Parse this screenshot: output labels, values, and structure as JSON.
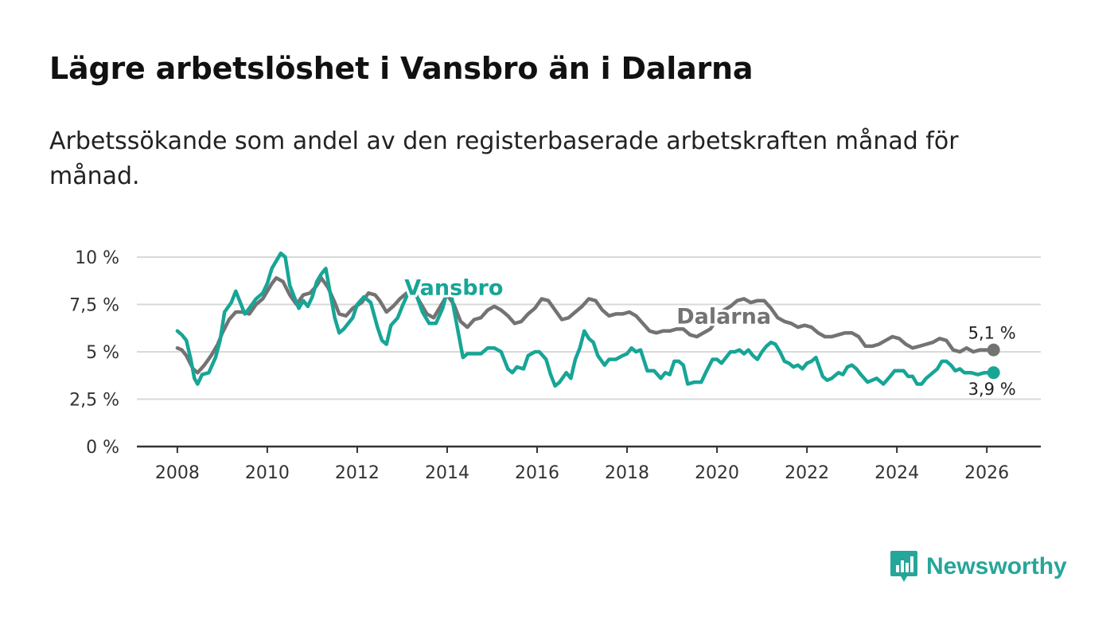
{
  "header": {
    "title": "Lägre arbetslöshet i Vansbro än i Dalarna",
    "subtitle": "Arbetssökande som andel av den registerbaserade arbetskraften månad för månad."
  },
  "brand": {
    "name": "Newsworthy",
    "color": "#26a69a"
  },
  "chart_data": {
    "type": "line",
    "title": "Lägre arbetslöshet i Vansbro än i Dalarna",
    "subtitle": "Arbetssökande som andel av den registerbaserade arbetskraften månad för månad.",
    "xlabel": "",
    "ylabel": "",
    "xlim": [
      2007.1,
      2027.2
    ],
    "ylim": [
      0,
      10
    ],
    "yticks": [
      {
        "value": 0,
        "label": "0 %"
      },
      {
        "value": 2.5,
        "label": "2,5 %"
      },
      {
        "value": 5,
        "label": "5 %"
      },
      {
        "value": 7.5,
        "label": "7,5 %"
      },
      {
        "value": 10,
        "label": "10 %"
      }
    ],
    "xticks": [
      {
        "value": 2008,
        "label": "2008"
      },
      {
        "value": 2010,
        "label": "2010"
      },
      {
        "value": 2012,
        "label": "2012"
      },
      {
        "value": 2014,
        "label": "2014"
      },
      {
        "value": 2016,
        "label": "2016"
      },
      {
        "value": 2018,
        "label": "2018"
      },
      {
        "value": 2020,
        "label": "2020"
      },
      {
        "value": 2022,
        "label": "2022"
      },
      {
        "value": 2024,
        "label": "2024"
      },
      {
        "value": 2026,
        "label": "2026"
      }
    ],
    "grid": true,
    "series": [
      {
        "name": "Dalarna",
        "color": "#737373",
        "label_position": [
          2019.1,
          6.5
        ],
        "end_label": "5,1 %",
        "points": [
          [
            2008.0,
            5.2
          ],
          [
            2008.1,
            5.1
          ],
          [
            2008.2,
            4.8
          ],
          [
            2008.35,
            4.1
          ],
          [
            2008.45,
            3.9
          ],
          [
            2008.6,
            4.3
          ],
          [
            2008.75,
            4.8
          ],
          [
            2008.9,
            5.4
          ],
          [
            2009.0,
            6.0
          ],
          [
            2009.15,
            6.7
          ],
          [
            2009.3,
            7.1
          ],
          [
            2009.45,
            7.1
          ],
          [
            2009.6,
            7.0
          ],
          [
            2009.75,
            7.5
          ],
          [
            2009.9,
            7.8
          ],
          [
            2010.0,
            8.2
          ],
          [
            2010.1,
            8.6
          ],
          [
            2010.2,
            8.9
          ],
          [
            2010.35,
            8.7
          ],
          [
            2010.5,
            8.0
          ],
          [
            2010.65,
            7.5
          ],
          [
            2010.8,
            8.0
          ],
          [
            2010.95,
            8.1
          ],
          [
            2011.1,
            8.5
          ],
          [
            2011.2,
            8.9
          ],
          [
            2011.35,
            8.4
          ],
          [
            2011.5,
            7.6
          ],
          [
            2011.6,
            7.0
          ],
          [
            2011.75,
            6.9
          ],
          [
            2011.9,
            7.3
          ],
          [
            2012.1,
            7.6
          ],
          [
            2012.25,
            8.1
          ],
          [
            2012.4,
            8.0
          ],
          [
            2012.5,
            7.7
          ],
          [
            2012.65,
            7.1
          ],
          [
            2012.8,
            7.4
          ],
          [
            2012.95,
            7.8
          ],
          [
            2013.1,
            8.1
          ],
          [
            2013.25,
            8.2
          ],
          [
            2013.4,
            7.6
          ],
          [
            2013.55,
            7.0
          ],
          [
            2013.7,
            6.8
          ],
          [
            2013.85,
            7.4
          ],
          [
            2014.0,
            8.0
          ],
          [
            2014.15,
            7.5
          ],
          [
            2014.3,
            6.6
          ],
          [
            2014.45,
            6.3
          ],
          [
            2014.6,
            6.7
          ],
          [
            2014.75,
            6.8
          ],
          [
            2014.9,
            7.2
          ],
          [
            2015.05,
            7.4
          ],
          [
            2015.2,
            7.2
          ],
          [
            2015.35,
            6.9
          ],
          [
            2015.5,
            6.5
          ],
          [
            2015.65,
            6.6
          ],
          [
            2015.8,
            7.0
          ],
          [
            2015.95,
            7.3
          ],
          [
            2016.1,
            7.8
          ],
          [
            2016.25,
            7.7
          ],
          [
            2016.4,
            7.2
          ],
          [
            2016.55,
            6.7
          ],
          [
            2016.7,
            6.8
          ],
          [
            2016.85,
            7.1
          ],
          [
            2017.0,
            7.4
          ],
          [
            2017.15,
            7.8
          ],
          [
            2017.3,
            7.7
          ],
          [
            2017.45,
            7.2
          ],
          [
            2017.6,
            6.9
          ],
          [
            2017.75,
            7.0
          ],
          [
            2017.9,
            7.0
          ],
          [
            2018.05,
            7.1
          ],
          [
            2018.2,
            6.9
          ],
          [
            2018.35,
            6.5
          ],
          [
            2018.5,
            6.1
          ],
          [
            2018.65,
            6.0
          ],
          [
            2018.8,
            6.1
          ],
          [
            2018.95,
            6.1
          ],
          [
            2019.1,
            6.2
          ],
          [
            2019.25,
            6.2
          ],
          [
            2019.4,
            5.9
          ],
          [
            2019.55,
            5.8
          ],
          [
            2019.7,
            6.0
          ],
          [
            2019.85,
            6.2
          ],
          [
            2020.0,
            6.7
          ],
          [
            2020.15,
            7.2
          ],
          [
            2020.3,
            7.4
          ],
          [
            2020.45,
            7.7
          ],
          [
            2020.6,
            7.8
          ],
          [
            2020.75,
            7.6
          ],
          [
            2020.9,
            7.7
          ],
          [
            2021.05,
            7.7
          ],
          [
            2021.2,
            7.3
          ],
          [
            2021.35,
            6.8
          ],
          [
            2021.5,
            6.6
          ],
          [
            2021.65,
            6.5
          ],
          [
            2021.8,
            6.3
          ],
          [
            2021.95,
            6.4
          ],
          [
            2022.1,
            6.3
          ],
          [
            2022.25,
            6.0
          ],
          [
            2022.4,
            5.8
          ],
          [
            2022.55,
            5.8
          ],
          [
            2022.7,
            5.9
          ],
          [
            2022.85,
            6.0
          ],
          [
            2023.0,
            6.0
          ],
          [
            2023.15,
            5.8
          ],
          [
            2023.3,
            5.3
          ],
          [
            2023.45,
            5.3
          ],
          [
            2023.6,
            5.4
          ],
          [
            2023.75,
            5.6
          ],
          [
            2023.9,
            5.8
          ],
          [
            2024.05,
            5.7
          ],
          [
            2024.2,
            5.4
          ],
          [
            2024.35,
            5.2
          ],
          [
            2024.5,
            5.3
          ],
          [
            2024.65,
            5.4
          ],
          [
            2024.8,
            5.5
          ],
          [
            2024.95,
            5.7
          ],
          [
            2025.1,
            5.6
          ],
          [
            2025.25,
            5.1
          ],
          [
            2025.4,
            5.0
          ],
          [
            2025.55,
            5.2
          ],
          [
            2025.7,
            5.0
          ],
          [
            2025.85,
            5.1
          ],
          [
            2026.0,
            5.1
          ],
          [
            2026.15,
            5.1
          ]
        ]
      },
      {
        "name": "Vansbro",
        "color": "#17a596",
        "label_position": [
          2013.05,
          8.0
        ],
        "end_label": "3,9 %",
        "points": [
          [
            2008.0,
            6.1
          ],
          [
            2008.1,
            5.9
          ],
          [
            2008.2,
            5.6
          ],
          [
            2008.3,
            4.6
          ],
          [
            2008.38,
            3.6
          ],
          [
            2008.45,
            3.3
          ],
          [
            2008.55,
            3.8
          ],
          [
            2008.7,
            3.9
          ],
          [
            2008.85,
            4.7
          ],
          [
            2008.95,
            5.6
          ],
          [
            2009.05,
            7.1
          ],
          [
            2009.2,
            7.6
          ],
          [
            2009.3,
            8.2
          ],
          [
            2009.4,
            7.6
          ],
          [
            2009.5,
            7.0
          ],
          [
            2009.6,
            7.3
          ],
          [
            2009.75,
            7.8
          ],
          [
            2009.9,
            8.1
          ],
          [
            2010.0,
            8.6
          ],
          [
            2010.1,
            9.4
          ],
          [
            2010.2,
            9.8
          ],
          [
            2010.3,
            10.2
          ],
          [
            2010.4,
            10.0
          ],
          [
            2010.5,
            8.5
          ],
          [
            2010.6,
            7.9
          ],
          [
            2010.7,
            7.3
          ],
          [
            2010.8,
            7.7
          ],
          [
            2010.9,
            7.4
          ],
          [
            2011.0,
            7.9
          ],
          [
            2011.1,
            8.7
          ],
          [
            2011.2,
            9.1
          ],
          [
            2011.3,
            9.4
          ],
          [
            2011.4,
            8.1
          ],
          [
            2011.5,
            6.8
          ],
          [
            2011.6,
            6.0
          ],
          [
            2011.7,
            6.2
          ],
          [
            2011.8,
            6.5
          ],
          [
            2011.9,
            6.8
          ],
          [
            2012.0,
            7.5
          ],
          [
            2012.15,
            7.9
          ],
          [
            2012.3,
            7.6
          ],
          [
            2012.45,
            6.3
          ],
          [
            2012.55,
            5.6
          ],
          [
            2012.65,
            5.4
          ],
          [
            2012.75,
            6.4
          ],
          [
            2012.9,
            6.8
          ],
          [
            2013.0,
            7.4
          ],
          [
            2013.15,
            8.2
          ],
          [
            2013.3,
            8.1
          ],
          [
            2013.45,
            7.1
          ],
          [
            2013.6,
            6.5
          ],
          [
            2013.75,
            6.5
          ],
          [
            2013.9,
            7.3
          ],
          [
            2014.0,
            8.2
          ],
          [
            2014.1,
            7.9
          ],
          [
            2014.2,
            6.6
          ],
          [
            2014.35,
            4.7
          ],
          [
            2014.45,
            4.9
          ],
          [
            2014.6,
            4.9
          ],
          [
            2014.75,
            4.9
          ],
          [
            2014.9,
            5.2
          ],
          [
            2015.05,
            5.2
          ],
          [
            2015.2,
            5.0
          ],
          [
            2015.35,
            4.1
          ],
          [
            2015.45,
            3.9
          ],
          [
            2015.55,
            4.2
          ],
          [
            2015.7,
            4.1
          ],
          [
            2015.8,
            4.8
          ],
          [
            2015.95,
            5.0
          ],
          [
            2016.05,
            5.0
          ],
          [
            2016.2,
            4.6
          ],
          [
            2016.3,
            3.8
          ],
          [
            2016.4,
            3.2
          ],
          [
            2016.5,
            3.4
          ],
          [
            2016.65,
            3.9
          ],
          [
            2016.75,
            3.6
          ],
          [
            2016.85,
            4.6
          ],
          [
            2016.95,
            5.2
          ],
          [
            2017.05,
            6.1
          ],
          [
            2017.15,
            5.7
          ],
          [
            2017.25,
            5.5
          ],
          [
            2017.35,
            4.8
          ],
          [
            2017.5,
            4.3
          ],
          [
            2017.6,
            4.6
          ],
          [
            2017.75,
            4.6
          ],
          [
            2017.9,
            4.8
          ],
          [
            2018.0,
            4.9
          ],
          [
            2018.1,
            5.2
          ],
          [
            2018.2,
            5.0
          ],
          [
            2018.3,
            5.1
          ],
          [
            2018.45,
            4.0
          ],
          [
            2018.6,
            4.0
          ],
          [
            2018.75,
            3.6
          ],
          [
            2018.85,
            3.9
          ],
          [
            2018.95,
            3.8
          ],
          [
            2019.05,
            4.5
          ],
          [
            2019.15,
            4.5
          ],
          [
            2019.25,
            4.3
          ],
          [
            2019.35,
            3.3
          ],
          [
            2019.5,
            3.4
          ],
          [
            2019.65,
            3.4
          ],
          [
            2019.75,
            3.9
          ],
          [
            2019.9,
            4.6
          ],
          [
            2020.0,
            4.6
          ],
          [
            2020.1,
            4.4
          ],
          [
            2020.2,
            4.7
          ],
          [
            2020.3,
            5.0
          ],
          [
            2020.4,
            5.0
          ],
          [
            2020.5,
            5.1
          ],
          [
            2020.6,
            4.9
          ],
          [
            2020.7,
            5.1
          ],
          [
            2020.8,
            4.8
          ],
          [
            2020.9,
            4.6
          ],
          [
            2021.0,
            5.0
          ],
          [
            2021.1,
            5.3
          ],
          [
            2021.2,
            5.5
          ],
          [
            2021.3,
            5.4
          ],
          [
            2021.4,
            5.0
          ],
          [
            2021.5,
            4.5
          ],
          [
            2021.6,
            4.4
          ],
          [
            2021.7,
            4.2
          ],
          [
            2021.8,
            4.3
          ],
          [
            2021.9,
            4.1
          ],
          [
            2022.0,
            4.4
          ],
          [
            2022.1,
            4.5
          ],
          [
            2022.2,
            4.7
          ],
          [
            2022.35,
            3.7
          ],
          [
            2022.45,
            3.5
          ],
          [
            2022.55,
            3.6
          ],
          [
            2022.7,
            3.9
          ],
          [
            2022.8,
            3.8
          ],
          [
            2022.9,
            4.2
          ],
          [
            2023.0,
            4.3
          ],
          [
            2023.1,
            4.1
          ],
          [
            2023.2,
            3.8
          ],
          [
            2023.35,
            3.4
          ],
          [
            2023.45,
            3.5
          ],
          [
            2023.55,
            3.6
          ],
          [
            2023.7,
            3.3
          ],
          [
            2023.85,
            3.7
          ],
          [
            2023.95,
            4.0
          ],
          [
            2024.05,
            4.0
          ],
          [
            2024.15,
            4.0
          ],
          [
            2024.25,
            3.7
          ],
          [
            2024.35,
            3.7
          ],
          [
            2024.45,
            3.3
          ],
          [
            2024.55,
            3.3
          ],
          [
            2024.65,
            3.6
          ],
          [
            2024.8,
            3.9
          ],
          [
            2024.9,
            4.1
          ],
          [
            2025.0,
            4.5
          ],
          [
            2025.1,
            4.5
          ],
          [
            2025.2,
            4.3
          ],
          [
            2025.3,
            4.0
          ],
          [
            2025.4,
            4.1
          ],
          [
            2025.5,
            3.9
          ],
          [
            2025.65,
            3.9
          ],
          [
            2025.8,
            3.8
          ],
          [
            2025.95,
            3.9
          ],
          [
            2026.05,
            3.9
          ],
          [
            2026.15,
            3.9
          ]
        ]
      }
    ]
  }
}
